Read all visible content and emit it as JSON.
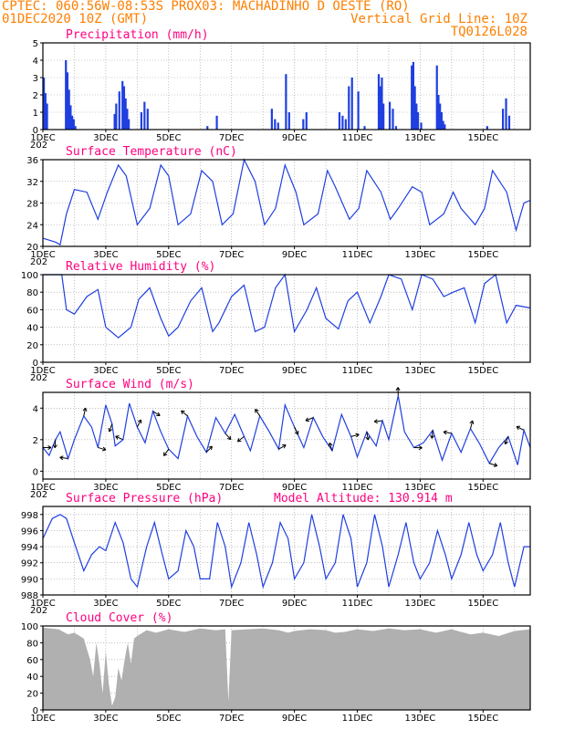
{
  "header": {
    "line1": "CPTEC:  060:56W-08:53S  PROX03: MACHADINHO D OESTE (RO)",
    "date": "01DEC2020 10Z (GMT)",
    "grid_note": "Vertical Grid Line: 10Z",
    "code": "TQ0126L028"
  },
  "colors": {
    "line": "#1f3fe0",
    "bar": "#1f3fe0",
    "cloud": "#b0b0b0",
    "title": "#ff007f",
    "header": "#ff7f00"
  },
  "x_tick_labels": [
    "1DEC",
    "3DEC",
    "5DEC",
    "7DEC",
    "9DEC",
    "11DEC",
    "13DEC",
    "15DEC"
  ],
  "year_fragment": "202",
  "chart_data": [
    {
      "id": "precip",
      "type": "bar",
      "title": "Precipitation (mm/h)",
      "xlim": [
        0,
        15.5
      ],
      "ylim": [
        0,
        5
      ],
      "yticks": [
        0,
        1,
        2,
        3,
        4,
        5
      ],
      "x": [
        0,
        0.05,
        0.1,
        0.7,
        0.75,
        0.8,
        0.85,
        0.9,
        0.95,
        1.0,
        2.25,
        2.3,
        2.4,
        2.5,
        2.55,
        2.6,
        2.65,
        2.7,
        3.1,
        3.2,
        3.3,
        5.2,
        5.5,
        7.25,
        7.35,
        7.45,
        7.7,
        7.8,
        8.25,
        8.35,
        9.4,
        9.5,
        9.6,
        9.7,
        9.8,
        10.0,
        10.2,
        10.65,
        10.7,
        10.75,
        10.8,
        11.0,
        11.1,
        11.2,
        11.7,
        11.75,
        11.8,
        11.85,
        11.9,
        12.0,
        12.5,
        12.55,
        12.6,
        12.65,
        12.7,
        12.75,
        14.1,
        14.6,
        14.7,
        14.8
      ],
      "values": [
        3.0,
        2.1,
        1.5,
        4.0,
        3.3,
        2.3,
        1.4,
        0.8,
        0.6,
        0.2,
        0.9,
        1.5,
        2.2,
        2.8,
        2.5,
        1.8,
        1.2,
        0.6,
        1.0,
        1.6,
        1.2,
        0.2,
        0.8,
        1.2,
        0.6,
        0.4,
        3.2,
        1.0,
        0.6,
        1.0,
        1.0,
        0.8,
        0.6,
        2.5,
        3.0,
        2.2,
        0.2,
        3.2,
        2.5,
        3.0,
        1.5,
        1.6,
        1.2,
        0.2,
        3.7,
        3.9,
        2.5,
        1.5,
        1.0,
        0.4,
        3.7,
        2.0,
        1.5,
        1.0,
        0.5,
        0.3,
        0.2,
        1.2,
        1.8,
        0.8
      ]
    },
    {
      "id": "temp",
      "type": "line",
      "title": "Surface Temperature (nC)",
      "xlim": [
        0,
        15.5
      ],
      "ylim": [
        20,
        36
      ],
      "yticks": [
        20,
        24,
        28,
        32,
        36
      ],
      "x": [
        0,
        0.4,
        0.55,
        0.75,
        1.0,
        1.4,
        1.75,
        2.05,
        2.4,
        2.65,
        3.0,
        3.4,
        3.75,
        4.0,
        4.3,
        4.7,
        5.05,
        5.4,
        5.7,
        6.05,
        6.4,
        6.75,
        7.05,
        7.4,
        7.7,
        8.05,
        8.3,
        8.75,
        9.05,
        9.3,
        9.75,
        10.05,
        10.3,
        10.75,
        11.05,
        11.3,
        11.75,
        12.05,
        12.3,
        12.75,
        13.05,
        13.3,
        13.75,
        14.05,
        14.3,
        14.75,
        15.05,
        15.3,
        15.5
      ],
      "y": [
        21.5,
        20.8,
        20.3,
        26,
        30.5,
        30,
        25,
        30,
        35,
        33,
        24,
        27,
        35,
        33,
        24,
        26,
        34,
        32,
        24,
        26,
        36,
        32,
        24,
        27,
        35,
        30,
        24,
        26,
        34,
        31,
        25,
        27,
        34,
        30,
        25,
        27,
        31,
        30,
        24,
        26,
        30,
        27,
        24,
        27,
        34,
        30,
        23,
        28,
        28.5
      ]
    },
    {
      "id": "rh",
      "type": "line",
      "title": "Relative Humidity (%)",
      "xlim": [
        0,
        15.5
      ],
      "ylim": [
        0,
        100
      ],
      "yticks": [
        0,
        20,
        40,
        60,
        80,
        100
      ],
      "x": [
        0,
        0.6,
        0.75,
        1.0,
        1.4,
        1.75,
        2.0,
        2.4,
        2.8,
        3.05,
        3.4,
        3.75,
        4.0,
        4.3,
        4.7,
        5.05,
        5.4,
        5.6,
        6.0,
        6.4,
        6.75,
        7.05,
        7.4,
        7.7,
        8.0,
        8.4,
        8.7,
        9.0,
        9.4,
        9.7,
        10.0,
        10.4,
        10.75,
        11.0,
        11.4,
        11.75,
        12.05,
        12.4,
        12.75,
        13.05,
        13.4,
        13.75,
        14.05,
        14.4,
        14.75,
        15.05,
        15.5
      ],
      "y": [
        100,
        100,
        60,
        55,
        75,
        83,
        40,
        28,
        40,
        72,
        85,
        50,
        30,
        40,
        70,
        85,
        35,
        45,
        75,
        88,
        35,
        40,
        85,
        100,
        35,
        60,
        85,
        50,
        38,
        70,
        80,
        45,
        75,
        100,
        95,
        60,
        100,
        95,
        75,
        80,
        85,
        45,
        90,
        100,
        45,
        65,
        62
      ]
    },
    {
      "id": "wind",
      "type": "line",
      "title": "Surface Wind (m/s)",
      "xlim": [
        0,
        15.5
      ],
      "ylim": [
        -0.5,
        5
      ],
      "yticks": [
        0,
        2,
        4
      ],
      "x": [
        0,
        0.2,
        0.4,
        0.55,
        0.8,
        1.0,
        1.3,
        1.55,
        1.75,
        2.0,
        2.2,
        2.3,
        2.55,
        2.75,
        3.0,
        3.25,
        3.5,
        3.75,
        4.0,
        4.3,
        4.6,
        4.9,
        5.2,
        5.5,
        5.8,
        6.1,
        6.4,
        6.6,
        6.9,
        7.2,
        7.5,
        7.7,
        8.0,
        8.3,
        8.6,
        8.9,
        9.2,
        9.5,
        9.8,
        10.0,
        10.3,
        10.6,
        10.8,
        11.0,
        11.3,
        11.5,
        11.8,
        12.1,
        12.4,
        12.7,
        13.0,
        13.3,
        13.6,
        13.9,
        14.2,
        14.5,
        14.8,
        15.1,
        15.3,
        15.5
      ],
      "y": [
        1.5,
        1.0,
        2.0,
        2.5,
        0.8,
        2.0,
        3.5,
        2.8,
        1.5,
        4.2,
        3.0,
        1.6,
        2.0,
        4.3,
        2.8,
        1.8,
        3.8,
        2.5,
        1.4,
        0.8,
        3.5,
        2.2,
        1.2,
        3.4,
        2.4,
        3.6,
        2.2,
        1.3,
        3.5,
        2.5,
        1.4,
        4.2,
        2.8,
        1.5,
        3.4,
        2.2,
        1.3,
        3.6,
        2.2,
        0.9,
        2.5,
        1.6,
        3.2,
        2.0,
        4.8,
        2.5,
        1.5,
        1.8,
        2.6,
        0.7,
        2.4,
        1.2,
        2.7,
        1.7,
        0.5,
        1.5,
        2.2,
        0.4,
        2.6,
        1.5
      ]
    },
    {
      "id": "pres",
      "type": "line",
      "title": "Surface Pressure (hPa)",
      "annotation": "Model Altitude: 130.914 m",
      "xlim": [
        0,
        15.5
      ],
      "ylim": [
        988,
        999
      ],
      "yticks": [
        988,
        990,
        992,
        994,
        996,
        998
      ],
      "x": [
        0,
        0.3,
        0.55,
        0.75,
        1.0,
        1.3,
        1.55,
        1.8,
        2.0,
        2.3,
        2.55,
        2.8,
        3.0,
        3.3,
        3.55,
        3.8,
        4.0,
        4.3,
        4.55,
        4.8,
        5.0,
        5.3,
        5.55,
        5.8,
        6.0,
        6.3,
        6.55,
        6.8,
        7.0,
        7.3,
        7.55,
        7.8,
        8.0,
        8.3,
        8.55,
        8.8,
        9.0,
        9.3,
        9.55,
        9.8,
        10.0,
        10.3,
        10.55,
        10.8,
        11.0,
        11.3,
        11.55,
        11.8,
        12.0,
        12.3,
        12.55,
        12.8,
        13.0,
        13.3,
        13.55,
        13.8,
        14.0,
        14.3,
        14.55,
        14.8,
        15.0,
        15.3,
        15.5
      ],
      "y": [
        995,
        997.5,
        998,
        997.5,
        994.5,
        991,
        993,
        994,
        993.5,
        997,
        994.5,
        990,
        989,
        994,
        997,
        993,
        990,
        991,
        996,
        994,
        990,
        990,
        997,
        994,
        989,
        992,
        997,
        993,
        989,
        992,
        997,
        995,
        990,
        992,
        998,
        994,
        990,
        992,
        998,
        995,
        989,
        992,
        998,
        994,
        989,
        993,
        997,
        992,
        990,
        992,
        996,
        993,
        990,
        993,
        997,
        993,
        991,
        993,
        997,
        992,
        989,
        994,
        994
      ]
    },
    {
      "id": "cloud",
      "type": "area",
      "title": "Cloud Cover (%)",
      "xlim": [
        0,
        15.5
      ],
      "ylim": [
        0,
        100
      ],
      "yticks": [
        0,
        20,
        40,
        60,
        80,
        100
      ],
      "x": [
        0,
        0.5,
        0.8,
        1.0,
        1.3,
        1.5,
        1.6,
        1.7,
        1.8,
        1.9,
        2.0,
        2.1,
        2.2,
        2.3,
        2.4,
        2.5,
        2.6,
        2.7,
        2.8,
        2.9,
        3.0,
        3.3,
        3.6,
        4.0,
        4.5,
        5.0,
        5.5,
        5.8,
        5.9,
        6.0,
        6.5,
        7.0,
        7.5,
        7.8,
        8.0,
        8.5,
        9.0,
        9.3,
        9.6,
        10.0,
        10.5,
        11.0,
        11.5,
        12.0,
        12.5,
        13.0,
        13.3,
        13.6,
        14.0,
        14.5,
        15.0,
        15.5
      ],
      "y": [
        98,
        96,
        90,
        92,
        85,
        60,
        40,
        80,
        55,
        20,
        70,
        30,
        5,
        15,
        50,
        35,
        60,
        80,
        55,
        85,
        88,
        95,
        92,
        96,
        93,
        97,
        95,
        96,
        10,
        95,
        96,
        97,
        95,
        92,
        94,
        96,
        95,
        92,
        93,
        96,
        94,
        97,
        95,
        96,
        92,
        96,
        93,
        90,
        92,
        88,
        94,
        96
      ]
    }
  ]
}
